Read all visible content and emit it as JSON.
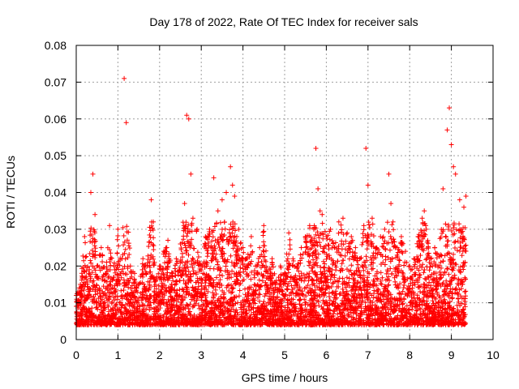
{
  "chart_data": {
    "type": "scatter",
    "title": "Day 178 of 2022, Rate Of TEC Index for receiver sals",
    "xlabel": "GPS time / hours",
    "ylabel": "ROTI / TECUs",
    "xlim": [
      0,
      10
    ],
    "ylim": [
      0,
      0.08
    ],
    "x_ticks": [
      "0",
      "1",
      "2",
      "3",
      "4",
      "5",
      "6",
      "7",
      "8",
      "9",
      "10"
    ],
    "y_ticks": [
      "0",
      "0.01",
      "0.02",
      "0.03",
      "0.04",
      "0.05",
      "0.06",
      "0.07",
      "0.08"
    ],
    "grid": true,
    "marker": "+",
    "color": "#ff0000",
    "series": [
      {
        "name": "ROTI",
        "x": [
          0.0,
          0.1,
          0.2,
          0.3,
          0.35,
          0.4,
          0.45,
          0.5,
          0.6,
          0.7,
          0.8,
          0.9,
          1.0,
          1.1,
          1.15,
          1.2,
          1.3,
          1.4,
          1.5,
          1.6,
          1.7,
          1.8,
          1.85,
          1.9,
          2.0,
          2.1,
          2.2,
          2.3,
          2.4,
          2.5,
          2.6,
          2.65,
          2.7,
          2.75,
          2.8,
          2.9,
          3.0,
          3.1,
          3.2,
          3.3,
          3.4,
          3.5,
          3.6,
          3.7,
          3.75,
          3.8,
          3.9,
          4.0,
          4.1,
          4.2,
          4.3,
          4.4,
          4.5,
          4.6,
          4.7,
          4.8,
          4.9,
          5.0,
          5.1,
          5.2,
          5.3,
          5.4,
          5.5,
          5.6,
          5.7,
          5.75,
          5.8,
          5.85,
          5.9,
          6.0,
          6.1,
          6.2,
          6.3,
          6.4,
          6.5,
          6.6,
          6.7,
          6.8,
          6.9,
          6.95,
          7.0,
          7.1,
          7.2,
          7.3,
          7.4,
          7.5,
          7.55,
          7.6,
          7.7,
          7.8,
          7.9,
          8.0,
          8.1,
          8.2,
          8.3,
          8.35,
          8.4,
          8.5,
          8.6,
          8.7,
          8.8,
          8.9,
          8.95,
          9.0,
          9.05,
          9.1,
          9.2,
          9.3,
          9.35
        ],
        "y": [
          0.012,
          0.015,
          0.028,
          0.018,
          0.04,
          0.045,
          0.034,
          0.02,
          0.025,
          0.018,
          0.031,
          0.02,
          0.03,
          0.022,
          0.071,
          0.059,
          0.02,
          0.018,
          0.015,
          0.022,
          0.02,
          0.038,
          0.032,
          0.016,
          0.02,
          0.024,
          0.027,
          0.018,
          0.022,
          0.026,
          0.037,
          0.061,
          0.06,
          0.045,
          0.033,
          0.03,
          0.02,
          0.028,
          0.03,
          0.044,
          0.035,
          0.038,
          0.04,
          0.047,
          0.042,
          0.039,
          0.03,
          0.025,
          0.022,
          0.028,
          0.02,
          0.025,
          0.031,
          0.018,
          0.022,
          0.016,
          0.02,
          0.018,
          0.029,
          0.022,
          0.02,
          0.025,
          0.028,
          0.031,
          0.03,
          0.052,
          0.041,
          0.035,
          0.034,
          0.028,
          0.03,
          0.025,
          0.032,
          0.033,
          0.029,
          0.028,
          0.025,
          0.022,
          0.031,
          0.052,
          0.042,
          0.033,
          0.025,
          0.028,
          0.03,
          0.045,
          0.037,
          0.032,
          0.025,
          0.028,
          0.024,
          0.02,
          0.022,
          0.028,
          0.033,
          0.035,
          0.03,
          0.022,
          0.025,
          0.023,
          0.041,
          0.057,
          0.063,
          0.053,
          0.047,
          0.045,
          0.038,
          0.036,
          0.039
        ]
      }
    ]
  }
}
